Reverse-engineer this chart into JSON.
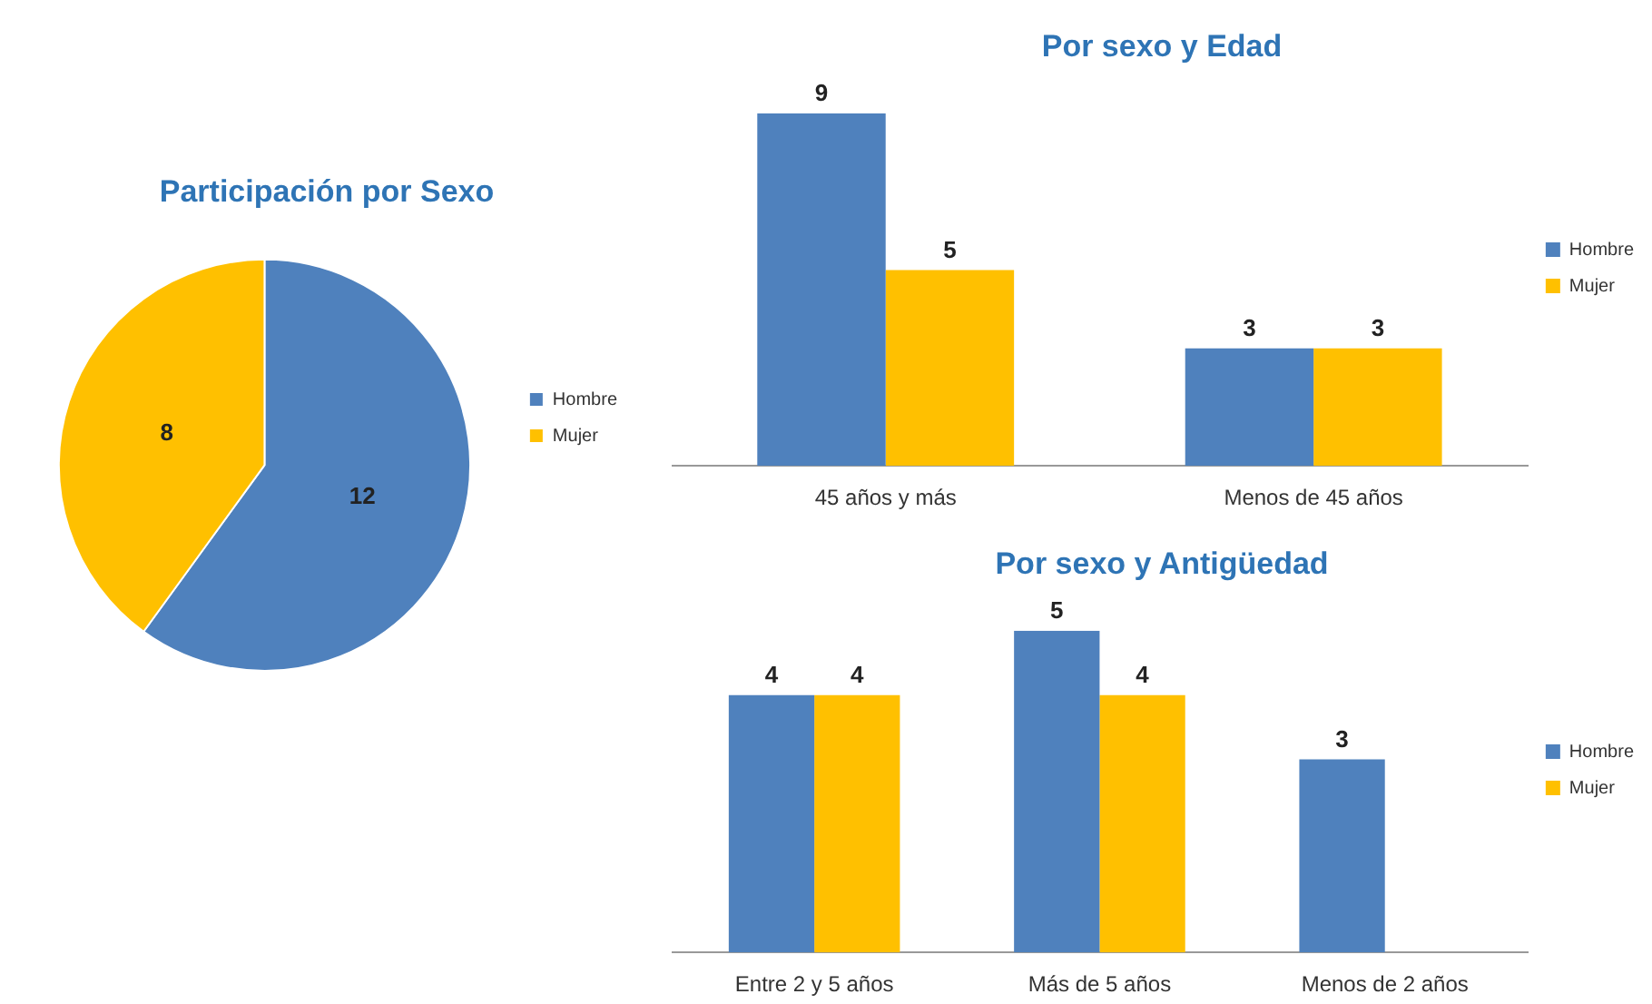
{
  "chart_data": [
    {
      "type": "pie",
      "title": "Participación por Sexo",
      "categories": [
        "Hombre",
        "Mujer"
      ],
      "values": [
        12,
        8
      ],
      "colors": [
        "#4f81bd",
        "#ffc000"
      ],
      "data_labels": true,
      "legend": "right"
    },
    {
      "type": "bar",
      "title": "Por sexo y Edad",
      "categories": [
        "45 años y más",
        "Menos de 45 años"
      ],
      "series": [
        {
          "name": "Hombre",
          "color": "#4f81bd",
          "values": [
            9,
            3
          ]
        },
        {
          "name": "Mujer",
          "color": "#ffc000",
          "values": [
            5,
            3
          ]
        }
      ],
      "data_labels": true,
      "legend": "right",
      "grid": false,
      "tick_labels": "x"
    },
    {
      "type": "bar",
      "title": "Por sexo y Antigüedad",
      "categories": [
        "Entre 2 y 5 años",
        "Más de 5 años",
        "Menos de 2 años"
      ],
      "series": [
        {
          "name": "Hombre",
          "color": "#4f81bd",
          "values": [
            4,
            5,
            3
          ]
        },
        {
          "name": "Mujer",
          "color": "#ffc000",
          "values": [
            4,
            4,
            null
          ]
        }
      ],
      "data_labels": true,
      "legend": "right",
      "grid": false,
      "tick_labels": "x"
    }
  ]
}
